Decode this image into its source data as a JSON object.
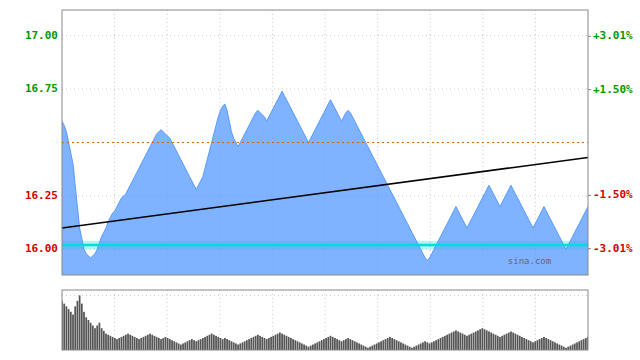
{
  "chart_data": [
    {
      "type": "area",
      "series": [
        {
          "type": "area",
          "color": "#5599ff",
          "x": [
            0,
            1,
            2,
            3,
            4,
            5,
            6,
            7,
            8,
            9,
            10,
            11,
            12,
            13,
            14,
            15,
            16,
            17,
            18,
            19,
            20,
            21,
            22,
            23,
            24,
            25,
            26,
            27,
            28,
            29,
            30,
            31,
            32,
            33,
            34,
            35,
            36,
            37,
            38,
            39,
            40,
            41,
            42,
            43,
            44,
            45,
            46,
            47,
            48,
            49,
            50,
            51,
            52,
            53,
            54,
            55,
            56,
            57,
            58,
            59,
            60,
            61,
            62,
            63,
            64,
            65,
            66,
            67,
            68,
            69,
            70,
            71,
            72,
            73,
            74,
            75,
            76,
            77,
            78,
            79,
            80,
            81,
            82,
            83,
            84,
            85,
            86,
            87,
            88,
            89,
            90,
            91,
            92,
            93,
            94,
            95,
            96,
            97,
            98,
            99,
            100,
            101,
            102,
            103,
            104,
            105,
            106,
            107,
            108,
            109,
            110,
            111,
            112,
            113,
            114,
            115,
            116,
            117,
            118,
            119,
            120,
            121,
            122,
            123,
            124,
            125,
            126,
            127,
            128,
            129,
            130,
            131,
            132,
            133,
            134,
            135,
            136,
            137,
            138,
            139,
            140,
            141,
            142,
            143,
            144,
            145,
            146,
            147,
            148,
            149,
            150,
            151,
            152,
            153,
            154,
            155,
            156,
            157,
            158,
            159,
            160,
            161,
            162,
            163,
            164,
            165,
            166,
            167,
            168,
            169,
            170,
            171,
            172,
            173,
            174,
            175,
            176,
            177,
            178,
            179,
            180,
            181,
            182,
            183,
            184,
            185,
            186,
            187,
            188,
            189,
            190,
            191,
            192,
            193,
            194,
            195,
            196,
            197,
            198,
            199,
            200,
            201,
            202,
            203,
            204,
            205,
            206,
            207,
            208,
            209,
            210,
            211,
            212,
            213,
            214,
            215,
            216,
            217,
            218,
            219,
            220,
            221,
            222,
            223,
            224,
            225,
            226,
            227,
            228,
            229,
            230,
            231,
            232,
            233,
            234,
            235,
            236,
            237,
            238,
            239
          ],
          "values": [
            16.6,
            16.58,
            16.55,
            16.5,
            16.45,
            16.4,
            16.3,
            16.2,
            16.1,
            16.05,
            16.0,
            15.98,
            15.97,
            15.96,
            15.97,
            15.98,
            16.0,
            16.03,
            16.06,
            16.08,
            16.1,
            16.13,
            16.15,
            16.17,
            16.18,
            16.2,
            16.22,
            16.24,
            16.25,
            16.26,
            16.28,
            16.3,
            16.32,
            16.34,
            16.36,
            16.38,
            16.4,
            16.42,
            16.44,
            16.46,
            16.48,
            16.5,
            16.52,
            16.54,
            16.55,
            16.56,
            16.55,
            16.54,
            16.53,
            16.52,
            16.5,
            16.48,
            16.46,
            16.44,
            16.42,
            16.4,
            16.38,
            16.36,
            16.34,
            16.32,
            16.3,
            16.28,
            16.3,
            16.32,
            16.34,
            16.38,
            16.42,
            16.46,
            16.5,
            16.54,
            16.58,
            16.62,
            16.65,
            16.67,
            16.68,
            16.65,
            16.6,
            16.55,
            16.52,
            16.5,
            16.48,
            16.5,
            16.52,
            16.54,
            16.56,
            16.58,
            16.6,
            16.62,
            16.64,
            16.65,
            16.64,
            16.63,
            16.62,
            16.6,
            16.62,
            16.64,
            16.66,
            16.68,
            16.7,
            16.72,
            16.74,
            16.72,
            16.7,
            16.68,
            16.66,
            16.64,
            16.62,
            16.6,
            16.58,
            16.56,
            16.54,
            16.52,
            16.5,
            16.52,
            16.54,
            16.56,
            16.58,
            16.6,
            16.62,
            16.64,
            16.66,
            16.68,
            16.7,
            16.68,
            16.66,
            16.64,
            16.62,
            16.6,
            16.62,
            16.64,
            16.65,
            16.64,
            16.62,
            16.6,
            16.58,
            16.56,
            16.54,
            16.52,
            16.5,
            16.48,
            16.46,
            16.44,
            16.42,
            16.4,
            16.38,
            16.36,
            16.34,
            16.32,
            16.3,
            16.28,
            16.26,
            16.24,
            16.22,
            16.2,
            16.18,
            16.16,
            16.14,
            16.12,
            16.1,
            16.08,
            16.06,
            16.04,
            16.02,
            16.0,
            15.98,
            15.96,
            15.95,
            15.96,
            15.98,
            16.0,
            16.02,
            16.04,
            16.06,
            16.08,
            16.1,
            16.12,
            16.14,
            16.16,
            16.18,
            16.2,
            16.18,
            16.16,
            16.14,
            16.12,
            16.1,
            16.12,
            16.14,
            16.16,
            16.18,
            16.2,
            16.22,
            16.24,
            16.26,
            16.28,
            16.3,
            16.28,
            16.26,
            16.24,
            16.22,
            16.2,
            16.22,
            16.24,
            16.26,
            16.28,
            16.3,
            16.28,
            16.26,
            16.24,
            16.22,
            16.2,
            16.18,
            16.16,
            16.14,
            16.12,
            16.1,
            16.12,
            16.14,
            16.16,
            16.18,
            16.2,
            16.18,
            16.16,
            16.14,
            16.12,
            16.1,
            16.08,
            16.06,
            16.04,
            16.02,
            16.0,
            16.02,
            16.04,
            16.06,
            16.08,
            16.1,
            16.12,
            16.14,
            16.16,
            16.18,
            16.2
          ]
        },
        {
          "type": "line",
          "color": "#000000",
          "x": [
            0,
            239
          ],
          "values": [
            16.1,
            16.43
          ]
        }
      ],
      "xlim": [
        0,
        239
      ],
      "xticks": [
        23.9,
        47.8,
        71.7,
        95.6,
        119.5,
        143.4,
        167.3,
        191.2,
        215.1
      ],
      "ylim": [
        15.88,
        17.12
      ],
      "yticks": [
        {
          "value": 16.0,
          "label": "16.00"
        },
        {
          "value": 16.25,
          "label": "16.25"
        },
        {
          "value": 16.75,
          "label": "16.75"
        },
        {
          "value": 17.0,
          "label": "17.00"
        }
      ],
      "y2lim": [
        -3.757575757575758,
        3.757575757575758
      ],
      "y2ticks": [
        {
          "value": -3.01,
          "label": "-3.01%"
        },
        {
          "value": -1.5,
          "label": "-1.50%"
        },
        {
          "value": 1.5,
          "label": "+1.50%"
        },
        {
          "value": 3.01,
          "label": "+3.01%"
        }
      ],
      "hlines": [
        {
          "value": 16.5,
          "color": "#cc6600",
          "line_style": "dotted"
        },
        {
          "value": 16.02,
          "color": "#00dddd",
          "line_style": "solid"
        }
      ],
      "bands": [
        {
          "from": 16.0,
          "to": 16.04,
          "color": "#00dddd"
        }
      ],
      "annotations": [
        {
          "text": "sina.com"
        }
      ],
      "grid": true,
      "tick_labels": "y"
    },
    {
      "type": "bar",
      "color": "#555555",
      "x": [
        0,
        1,
        2,
        3,
        4,
        5,
        6,
        7,
        8,
        9,
        10,
        11,
        12,
        13,
        14,
        15,
        16,
        17,
        18,
        19,
        20,
        21,
        22,
        23,
        24,
        25,
        26,
        27,
        28,
        29,
        30,
        31,
        32,
        33,
        34,
        35,
        36,
        37,
        38,
        39,
        40,
        41,
        42,
        43,
        44,
        45,
        46,
        47,
        48,
        49,
        50,
        51,
        52,
        53,
        54,
        55,
        56,
        57,
        58,
        59,
        60,
        61,
        62,
        63,
        64,
        65,
        66,
        67,
        68,
        69,
        70,
        71,
        72,
        73,
        74,
        75,
        76,
        77,
        78,
        79,
        80,
        81,
        82,
        83,
        84,
        85,
        86,
        87,
        88,
        89,
        90,
        91,
        92,
        93,
        94,
        95,
        96,
        97,
        98,
        99,
        100,
        101,
        102,
        103,
        104,
        105,
        106,
        107,
        108,
        109,
        110,
        111,
        112,
        113,
        114,
        115,
        116,
        117,
        118,
        119,
        120,
        121,
        122,
        123,
        124,
        125,
        126,
        127,
        128,
        129,
        130,
        131,
        132,
        133,
        134,
        135,
        136,
        137,
        138,
        139,
        140,
        141,
        142,
        143,
        144,
        145,
        146,
        147,
        148,
        149,
        150,
        151,
        152,
        153,
        154,
        155,
        156,
        157,
        158,
        159,
        160,
        161,
        162,
        163,
        164,
        165,
        166,
        167,
        168,
        169,
        170,
        171,
        172,
        173,
        174,
        175,
        176,
        177,
        178,
        179,
        180,
        181,
        182,
        183,
        184,
        185,
        186,
        187,
        188,
        189,
        190,
        191,
        192,
        193,
        194,
        195,
        196,
        197,
        198,
        199,
        200,
        201,
        202,
        203,
        204,
        205,
        206,
        207,
        208,
        209,
        210,
        211,
        212,
        213,
        214,
        215,
        216,
        217,
        218,
        219,
        220,
        221,
        222,
        223,
        224,
        225,
        226,
        227,
        228,
        229,
        230,
        231,
        232,
        233,
        234,
        235,
        236,
        237,
        238,
        239
      ],
      "values": [
        0.9,
        0.85,
        0.8,
        0.75,
        0.7,
        0.65,
        0.8,
        0.9,
        1.0,
        0.85,
        0.7,
        0.6,
        0.55,
        0.5,
        0.45,
        0.4,
        0.45,
        0.5,
        0.4,
        0.35,
        0.3,
        0.28,
        0.26,
        0.24,
        0.22,
        0.2,
        0.22,
        0.24,
        0.26,
        0.28,
        0.3,
        0.28,
        0.26,
        0.24,
        0.22,
        0.2,
        0.22,
        0.24,
        0.26,
        0.28,
        0.3,
        0.28,
        0.26,
        0.24,
        0.22,
        0.2,
        0.22,
        0.24,
        0.22,
        0.2,
        0.18,
        0.16,
        0.14,
        0.12,
        0.1,
        0.12,
        0.14,
        0.16,
        0.18,
        0.2,
        0.18,
        0.16,
        0.18,
        0.2,
        0.22,
        0.24,
        0.26,
        0.28,
        0.3,
        0.28,
        0.26,
        0.24,
        0.22,
        0.2,
        0.22,
        0.2,
        0.18,
        0.16,
        0.14,
        0.12,
        0.1,
        0.12,
        0.14,
        0.16,
        0.18,
        0.2,
        0.22,
        0.24,
        0.26,
        0.28,
        0.26,
        0.24,
        0.22,
        0.2,
        0.22,
        0.24,
        0.26,
        0.28,
        0.3,
        0.32,
        0.3,
        0.28,
        0.26,
        0.24,
        0.22,
        0.2,
        0.18,
        0.16,
        0.14,
        0.12,
        0.1,
        0.08,
        0.06,
        0.08,
        0.1,
        0.12,
        0.14,
        0.16,
        0.18,
        0.2,
        0.22,
        0.24,
        0.26,
        0.24,
        0.22,
        0.2,
        0.18,
        0.16,
        0.18,
        0.2,
        0.22,
        0.2,
        0.18,
        0.16,
        0.14,
        0.12,
        0.1,
        0.08,
        0.06,
        0.04,
        0.06,
        0.08,
        0.1,
        0.12,
        0.14,
        0.16,
        0.18,
        0.2,
        0.22,
        0.24,
        0.22,
        0.2,
        0.18,
        0.16,
        0.14,
        0.12,
        0.1,
        0.08,
        0.06,
        0.04,
        0.06,
        0.08,
        0.1,
        0.12,
        0.14,
        0.16,
        0.14,
        0.12,
        0.14,
        0.16,
        0.18,
        0.2,
        0.22,
        0.24,
        0.26,
        0.28,
        0.3,
        0.32,
        0.34,
        0.36,
        0.34,
        0.32,
        0.3,
        0.28,
        0.26,
        0.28,
        0.3,
        0.32,
        0.34,
        0.36,
        0.38,
        0.4,
        0.38,
        0.36,
        0.34,
        0.32,
        0.3,
        0.28,
        0.26,
        0.24,
        0.26,
        0.28,
        0.3,
        0.32,
        0.34,
        0.32,
        0.3,
        0.28,
        0.26,
        0.24,
        0.22,
        0.2,
        0.18,
        0.16,
        0.14,
        0.16,
        0.18,
        0.2,
        0.22,
        0.24,
        0.22,
        0.2,
        0.18,
        0.16,
        0.14,
        0.12,
        0.1,
        0.08,
        0.06,
        0.04,
        0.06,
        0.08,
        0.1,
        0.12,
        0.14,
        0.16,
        0.18,
        0.2,
        0.22,
        0.24
      ],
      "xlim": [
        0,
        239
      ],
      "xticks": [
        23.9,
        47.8,
        71.7,
        95.6,
        119.5,
        143.4,
        167.3,
        191.2,
        215.1
      ],
      "ylim": [
        0,
        1.1
      ],
      "yticks": [
        0,
        1
      ],
      "grid": true,
      "tick_labels": false
    }
  ]
}
